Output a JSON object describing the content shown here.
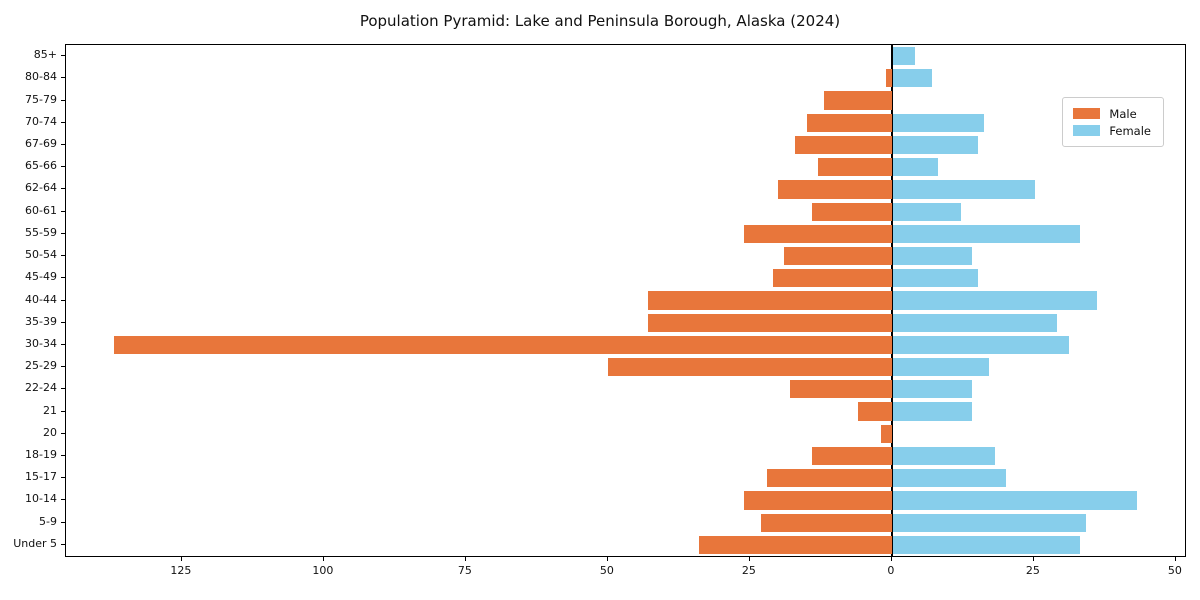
{
  "title": "Population Pyramid: Lake and Peninsula Borough, Alaska (2024)",
  "legend": {
    "male_label": "Male",
    "female_label": "Female"
  },
  "colors": {
    "male": "#e8763b",
    "female": "#87ceeb",
    "axis": "#000000",
    "legend_border": "#cccccc",
    "background": "#ffffff"
  },
  "chart_data": {
    "type": "bar",
    "variant": "population-pyramid",
    "title": "Population Pyramid: Lake and Peninsula Borough, Alaska (2024)",
    "xlabel": "",
    "ylabel": "",
    "grid": false,
    "legend_position": "upper right",
    "categories_top_to_bottom": [
      "85+",
      "80-84",
      "75-79",
      "70-74",
      "67-69",
      "65-66",
      "62-64",
      "60-61",
      "55-59",
      "50-54",
      "45-49",
      "40-44",
      "35-39",
      "30-34",
      "25-29",
      "22-24",
      "21",
      "20",
      "18-19",
      "15-17",
      "10-14",
      "5-9",
      "Under 5"
    ],
    "series": [
      {
        "name": "Male",
        "side": "left",
        "color": "#e8763b",
        "values": [
          0,
          1,
          12,
          15,
          17,
          13,
          20,
          14,
          26,
          19,
          21,
          43,
          43,
          137,
          50,
          18,
          6,
          2,
          14,
          22,
          26,
          23,
          34
        ]
      },
      {
        "name": "Female",
        "side": "right",
        "color": "#87ceeb",
        "values": [
          4,
          7,
          0,
          16,
          15,
          8,
          25,
          12,
          33,
          14,
          15,
          36,
          29,
          31,
          17,
          14,
          14,
          0,
          18,
          20,
          43,
          34,
          33
        ]
      }
    ],
    "x_tick_values": [
      -125,
      -100,
      -75,
      -50,
      -25,
      0,
      25,
      50
    ],
    "x_tick_labels": [
      "125",
      "100",
      "75",
      "50",
      "25",
      "0",
      "25",
      "50"
    ],
    "xlim": [
      -145.4,
      51.6
    ]
  }
}
